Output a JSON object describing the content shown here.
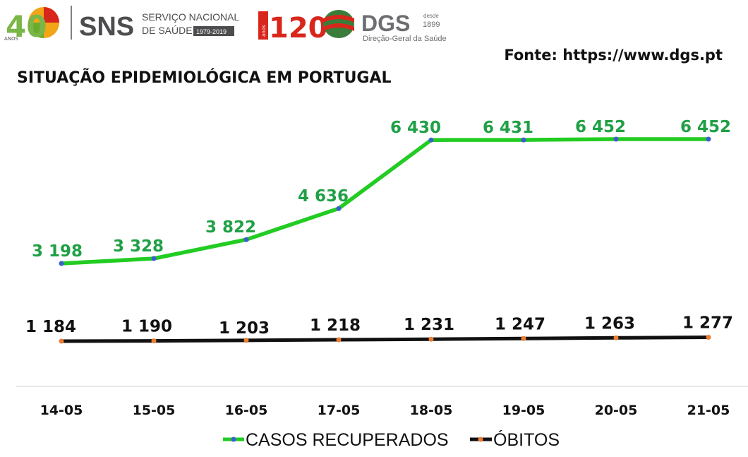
{
  "logos": {
    "sns_anos_number": "40",
    "sns_anos_label": "ANOS",
    "sns_name": "SNS",
    "sns_line1": "SERVIÇO NACIONAL",
    "sns_line2": "DE SAÚDE",
    "sns_years": "1979-2019",
    "dgs_anos_number": "120",
    "dgs_anos_label": "anos",
    "dgs_name": "DGS",
    "dgs_desde": "desde",
    "dgs_year": "1899",
    "dgs_full": "Direção-Geral da Saúde"
  },
  "source_text": "Fonte: https://www.dgs.pt",
  "colors": {
    "recuperados": "#22cc22",
    "recuperados_label": "#1fa045",
    "obitos": "#111111",
    "recuperados_marker": "#3a5fcd",
    "obitos_marker": "#ed7d31",
    "axis": "#d9d9d9"
  },
  "chart_data": {
    "type": "line",
    "title": "SITUAÇÃO EPIDEMIOLÓGICA EM PORTUGAL",
    "categories": [
      "14-05",
      "15-05",
      "16-05",
      "17-05",
      "18-05",
      "19-05",
      "20-05",
      "21-05"
    ],
    "series": [
      {
        "name": "CASOS RECUPERADOS",
        "values": [
          3198,
          3328,
          3822,
          4636,
          6430,
          6431,
          6452,
          6452
        ],
        "labels": [
          "3 198",
          "3 328",
          "3 822",
          "4 636",
          "6 430",
          "6 431",
          "6 452",
          "6 452"
        ]
      },
      {
        "name": "ÓBITOS",
        "values": [
          1184,
          1190,
          1203,
          1218,
          1231,
          1247,
          1263,
          1277
        ],
        "labels": [
          "1 184",
          "1 190",
          "1 203",
          "1 218",
          "1 231",
          "1 247",
          "1 263",
          "1 277"
        ]
      }
    ],
    "legend": "bottom-center",
    "grid": false
  }
}
